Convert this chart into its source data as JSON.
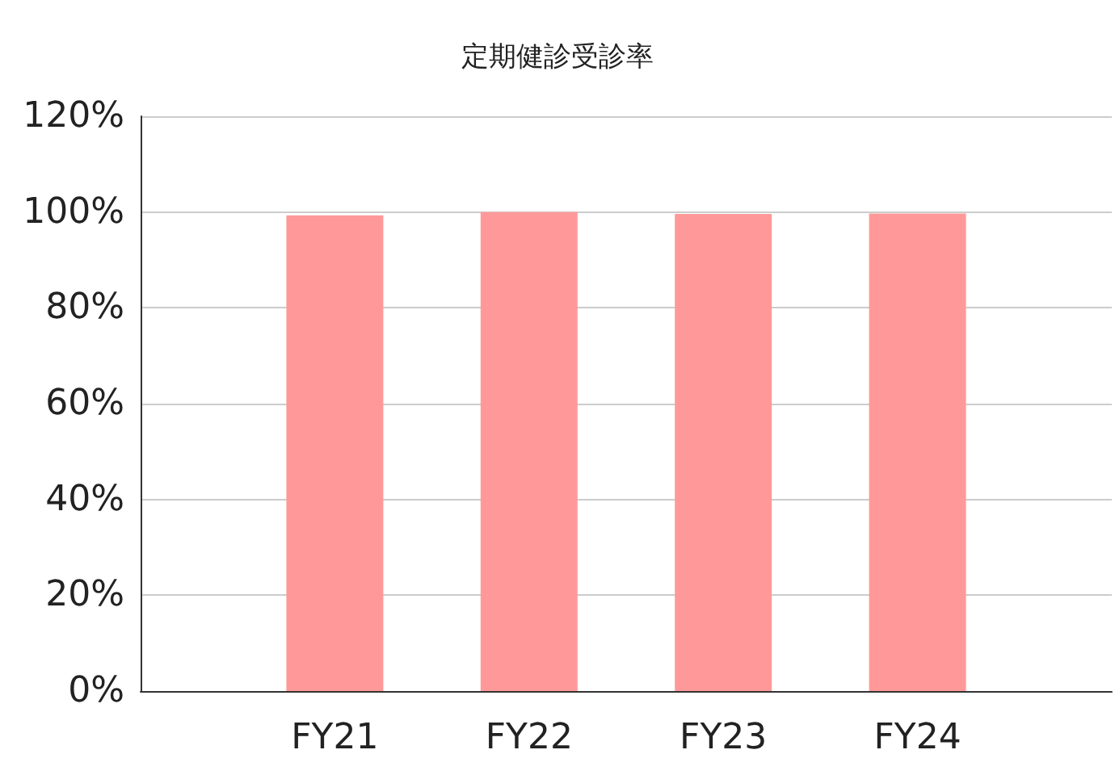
{
  "chart_data": {
    "type": "bar",
    "title": "定期健診受診率",
    "categories": [
      "FY21",
      "FY22",
      "FY23",
      "FY24"
    ],
    "values": [
      99.3,
      100,
      99.6,
      99.7
    ],
    "color": "#ff9999",
    "ylim": [
      0,
      120
    ],
    "yticks": [
      {
        "value": 0,
        "label": "0%"
      },
      {
        "value": 20,
        "label": "20%"
      },
      {
        "value": 40,
        "label": "40%"
      },
      {
        "value": 60,
        "label": "60%"
      },
      {
        "value": 80,
        "label": "80%"
      },
      {
        "value": 100,
        "label": "100%"
      },
      {
        "value": 120,
        "label": "120%"
      }
    ],
    "grid": "y"
  }
}
